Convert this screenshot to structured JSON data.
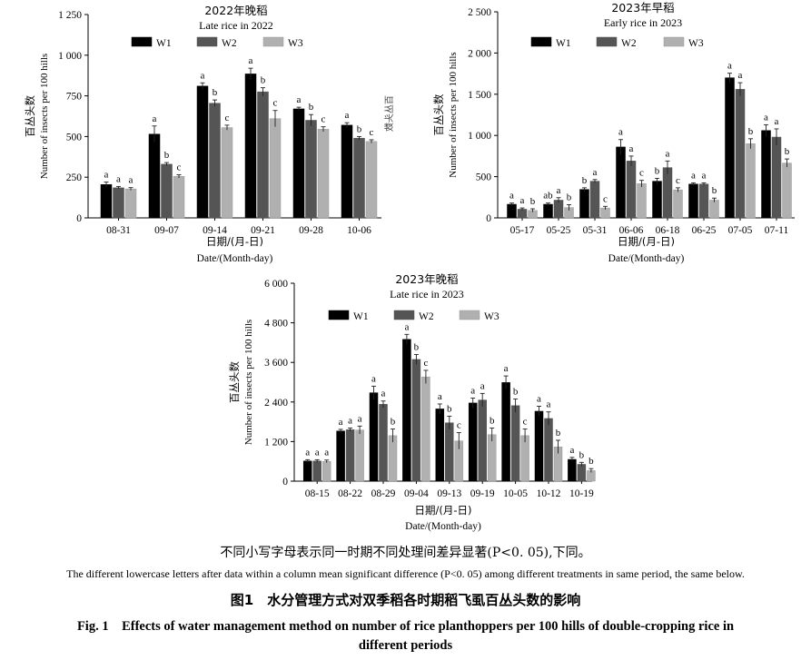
{
  "chart_data": [
    {
      "type": "bar",
      "title": "2022年晚稻",
      "subtitle": "Late rice in 2022",
      "ylabel_zh": "百丛头数",
      "ylabel_en": "Number of insects per 100 hills",
      "xlabel_zh": "日期/(月-日)",
      "xlabel_en": "Date/(Month-day)",
      "categories": [
        "08-31",
        "09-07",
        "09-14",
        "09-21",
        "09-28",
        "10-06"
      ],
      "yticks": [
        "0",
        "250",
        "500",
        "750",
        "1 000",
        "1 250"
      ],
      "ylim": [
        0,
        1250
      ],
      "legend_position": "top-left",
      "side_text": "百丛头数",
      "series": [
        {
          "name": "W1",
          "color": "#000000",
          "values": [
            205,
            515,
            810,
            885,
            670,
            570
          ],
          "errors": [
            15,
            50,
            20,
            35,
            10,
            15
          ],
          "letters": [
            "a",
            "a",
            "a",
            "a",
            "a",
            "a"
          ]
        },
        {
          "name": "W2",
          "color": "#555555",
          "values": [
            185,
            330,
            705,
            775,
            600,
            490
          ],
          "errors": [
            8,
            10,
            20,
            25,
            35,
            10
          ],
          "letters": [
            "a",
            "b",
            "b",
            "b",
            "b",
            "b"
          ]
        },
        {
          "name": "W3",
          "color": "#b0b0b0",
          "values": [
            178,
            255,
            555,
            610,
            545,
            470
          ],
          "errors": [
            8,
            10,
            15,
            50,
            15,
            10
          ],
          "letters": [
            "a",
            "c",
            "c",
            "c",
            "c",
            "c"
          ]
        }
      ]
    },
    {
      "type": "bar",
      "title": "2023年早稻",
      "subtitle": "Early rice in 2023",
      "ylabel_zh": "百丛头数",
      "ylabel_en": "Number of insects per 100 hills",
      "xlabel_zh": "日期/(月-日)",
      "xlabel_en": "Date/(Month-day)",
      "categories": [
        "05-17",
        "05-25",
        "05-31",
        "06-06",
        "06-18",
        "06-25",
        "07-05",
        "07-11"
      ],
      "yticks": [
        "0",
        "500",
        "1 000",
        "1 500",
        "2 000",
        "2 500"
      ],
      "ylim": [
        0,
        2500
      ],
      "legend_position": "top-left",
      "series": [
        {
          "name": "W1",
          "color": "#000000",
          "values": [
            165,
            165,
            345,
            860,
            445,
            410,
            1700,
            1060
          ],
          "errors": [
            15,
            15,
            20,
            90,
            35,
            15,
            55,
            70
          ],
          "letters": [
            "a",
            "ab",
            "b",
            "a",
            "b",
            "a",
            "a",
            "a"
          ]
        },
        {
          "name": "W2",
          "color": "#555555",
          "values": [
            105,
            215,
            445,
            690,
            610,
            410,
            1560,
            980
          ],
          "errors": [
            15,
            30,
            20,
            60,
            80,
            15,
            80,
            100
          ],
          "letters": [
            "a",
            "a",
            "a",
            "a",
            "a",
            "a",
            "a",
            "a"
          ]
        },
        {
          "name": "W3",
          "color": "#b0b0b0",
          "values": [
            90,
            125,
            120,
            415,
            340,
            215,
            900,
            665
          ],
          "errors": [
            20,
            35,
            20,
            40,
            25,
            25,
            60,
            50
          ],
          "letters": [
            "b",
            "b",
            "c",
            "c",
            "c",
            "b",
            "b",
            "b"
          ]
        }
      ]
    },
    {
      "type": "bar",
      "title": "2023年晚稻",
      "subtitle": "Late rice in 2023",
      "ylabel_zh": "百丛头数",
      "ylabel_en": "Number of insects per 100 hills",
      "xlabel_zh": "日期/(月-日)",
      "xlabel_en": "Date/(Month-day)",
      "categories": [
        "08-15",
        "08-22",
        "08-29",
        "09-04",
        "09-13",
        "09-19",
        "10-05",
        "10-12",
        "10-19"
      ],
      "yticks": [
        "0",
        "1 200",
        "2 400",
        "3 600",
        "4 800",
        "6 000"
      ],
      "ylim": [
        0,
        6000
      ],
      "legend_position": "top-center",
      "series": [
        {
          "name": "W1",
          "color": "#000000",
          "values": [
            610,
            1520,
            2680,
            4300,
            2190,
            2370,
            2990,
            2120,
            660
          ],
          "errors": [
            40,
            50,
            200,
            150,
            150,
            150,
            200,
            150,
            60
          ],
          "letters": [
            "a",
            "a",
            "a",
            "a",
            "a",
            "a",
            "a",
            "a",
            "a"
          ]
        },
        {
          "name": "W2",
          "color": "#555555",
          "values": [
            610,
            1560,
            2330,
            3690,
            1770,
            2460,
            2290,
            1900,
            510
          ],
          "errors": [
            40,
            50,
            100,
            150,
            200,
            200,
            200,
            200,
            60
          ],
          "letters": [
            "a",
            "a",
            "a",
            "b",
            "b",
            "a",
            "b",
            "a",
            "b"
          ]
        },
        {
          "name": "W3",
          "color": "#b0b0b0",
          "values": [
            600,
            1550,
            1380,
            3160,
            1220,
            1410,
            1380,
            1040,
            320
          ],
          "errors": [
            40,
            120,
            200,
            200,
            250,
            200,
            200,
            200,
            60
          ],
          "letters": [
            "a",
            "a",
            "b",
            "c",
            "c",
            "b",
            "c",
            "b",
            "b"
          ]
        }
      ]
    }
  ],
  "captions": {
    "note_zh": "不同小写字母表示同一时期不同处理间差异显著(P<0. 05),下同。",
    "note_en": "The different lowercase letters after data within a column mean significant difference (P<0. 05) among different treatments in same period, the same below.",
    "figure_zh": "图1　水分管理方式对双季稻各时期稻飞虱百丛头数的影响",
    "figure_en_line1": "Fig. 1　Effects of water management method on number of rice planthoppers per 100 hills of double-cropping rice in",
    "figure_en_line2": "different periods"
  }
}
